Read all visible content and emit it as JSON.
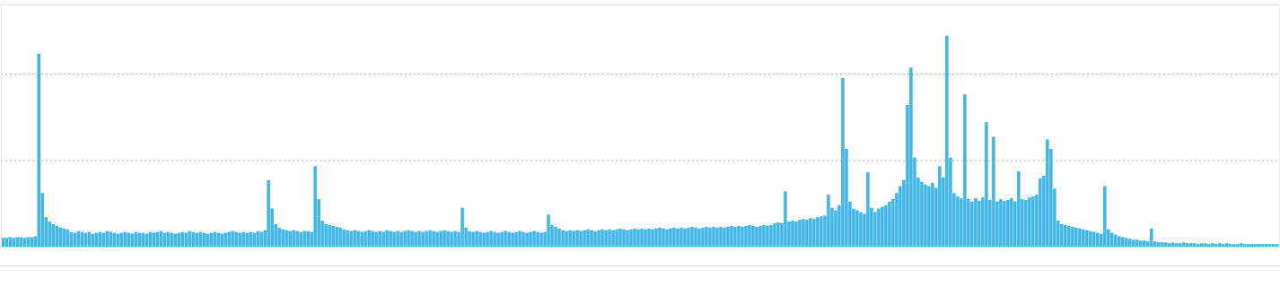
{
  "chart_data": {
    "type": "bar",
    "categories": [
      null,
      null,
      null,
      null,
      null,
      null,
      null,
      null,
      null,
      null,
      null,
      null,
      null,
      null,
      null,
      null,
      null,
      null,
      null,
      null,
      null,
      null,
      null,
      null,
      null,
      null,
      null,
      null,
      null,
      null,
      null,
      null,
      null,
      null,
      null,
      null,
      null,
      null,
      null,
      null,
      null,
      null,
      null,
      null,
      null,
      null,
      null,
      null,
      null,
      null,
      null,
      null,
      null,
      null,
      null,
      null,
      null,
      null,
      null,
      null,
      null,
      null,
      null,
      null,
      null,
      null,
      null,
      null,
      null,
      null,
      null,
      null,
      null,
      null,
      null,
      null,
      null,
      null,
      null,
      null,
      null,
      null,
      null,
      null,
      null,
      null,
      null,
      null,
      null,
      null,
      null,
      null,
      null,
      null,
      null,
      null,
      null,
      null,
      null,
      null,
      null,
      null,
      null,
      null,
      null,
      null,
      null,
      null,
      null,
      null,
      null,
      null,
      null,
      null,
      null,
      null,
      null,
      null,
      null,
      null,
      null,
      null,
      null,
      null,
      null,
      null,
      null,
      null,
      null,
      null,
      null,
      null,
      null,
      null,
      null,
      null,
      null,
      null,
      null,
      null,
      null,
      null,
      null,
      null,
      null,
      null,
      null,
      null,
      null,
      null,
      null,
      null,
      null,
      null,
      null,
      null,
      null,
      null,
      null,
      null,
      null,
      null,
      null,
      null,
      null,
      null,
      null,
      null,
      null,
      null,
      null,
      null,
      null,
      null,
      null,
      null,
      null,
      null,
      null,
      null,
      null,
      null,
      null,
      null,
      null,
      null,
      null,
      null,
      null,
      null,
      null,
      null,
      null,
      null,
      null,
      null,
      null,
      null,
      null,
      null,
      null,
      null,
      null,
      null,
      null,
      null,
      null,
      null,
      null,
      null,
      null,
      null,
      null,
      null,
      null,
      null,
      null,
      null,
      null,
      null,
      null,
      null,
      null,
      null,
      null,
      null,
      null,
      null,
      null,
      null,
      null,
      null,
      null,
      null,
      null,
      null,
      null,
      null,
      null,
      null,
      null,
      null,
      null,
      null,
      null,
      null,
      null,
      null,
      null,
      null,
      null,
      null,
      null,
      null,
      null,
      null,
      null,
      null,
      null,
      null,
      null,
      null,
      null,
      null,
      null,
      null,
      null,
      null,
      null,
      null,
      null,
      null,
      null,
      null,
      null,
      null,
      null,
      null,
      null,
      null,
      null,
      null,
      null,
      null,
      null,
      null,
      null,
      null,
      null,
      null,
      null,
      null,
      null,
      null,
      null,
      null,
      null,
      null,
      null,
      null,
      null,
      null,
      null,
      null,
      null,
      null,
      null,
      null,
      null,
      null,
      null,
      null,
      null,
      null,
      null,
      null,
      null,
      null,
      null,
      null,
      null,
      null,
      null,
      null,
      null,
      null,
      null,
      null,
      null,
      null,
      null,
      null,
      null,
      null,
      null,
      null,
      null,
      null,
      null,
      null,
      null,
      null,
      null,
      null,
      null,
      null,
      null,
      null,
      null,
      null,
      null,
      null,
      null,
      null,
      null,
      null
    ],
    "values": [
      10,
      10,
      11,
      10,
      11,
      11,
      10,
      11,
      11,
      12,
      223,
      62,
      34,
      29,
      26,
      24,
      22,
      21,
      20,
      17,
      16,
      18,
      17,
      16,
      17,
      15,
      16,
      17,
      16,
      18,
      17,
      16,
      15,
      16,
      17,
      16,
      15,
      17,
      16,
      16,
      15,
      17,
      16,
      17,
      18,
      16,
      17,
      16,
      15,
      16,
      17,
      16,
      18,
      17,
      16,
      17,
      16,
      15,
      16,
      17,
      16,
      15,
      16,
      17,
      18,
      17,
      16,
      17,
      16,
      17,
      16,
      18,
      17,
      19,
      77,
      44,
      26,
      22,
      20,
      19,
      18,
      19,
      18,
      17,
      18,
      18,
      17,
      93,
      55,
      30,
      26,
      25,
      24,
      23,
      22,
      20,
      19,
      18,
      19,
      18,
      17,
      18,
      19,
      18,
      17,
      18,
      17,
      19,
      18,
      17,
      18,
      17,
      18,
      19,
      18,
      17,
      18,
      17,
      18,
      19,
      18,
      17,
      18,
      19,
      18,
      17,
      18,
      17,
      45,
      22,
      18,
      17,
      18,
      17,
      16,
      17,
      18,
      17,
      16,
      17,
      18,
      17,
      16,
      17,
      18,
      17,
      16,
      17,
      18,
      17,
      16,
      17,
      37,
      25,
      23,
      21,
      19,
      18,
      19,
      18,
      19,
      18,
      19,
      20,
      19,
      18,
      19,
      20,
      19,
      20,
      19,
      20,
      21,
      20,
      19,
      20,
      21,
      20,
      21,
      20,
      21,
      20,
      21,
      22,
      21,
      20,
      21,
      22,
      21,
      22,
      21,
      22,
      23,
      22,
      21,
      22,
      23,
      22,
      23,
      22,
      23,
      22,
      23,
      24,
      23,
      24,
      23,
      24,
      25,
      24,
      23,
      24,
      25,
      24,
      25,
      27,
      28,
      27,
      64,
      29,
      30,
      29,
      31,
      32,
      31,
      33,
      32,
      34,
      35,
      36,
      60,
      45,
      42,
      48,
      195,
      113,
      52,
      44,
      42,
      40,
      38,
      86,
      45,
      40,
      44,
      46,
      48,
      52,
      55,
      62,
      70,
      77,
      164,
      207,
      103,
      80,
      75,
      72,
      70,
      74,
      68,
      93,
      80,
      244,
      103,
      62,
      58,
      56,
      176,
      55,
      52,
      56,
      53,
      57,
      144,
      54,
      127,
      52,
      55,
      53,
      54,
      56,
      52,
      87,
      55,
      54,
      57,
      58,
      60,
      79,
      82,
      124,
      113,
      67,
      30,
      26,
      25,
      24,
      23,
      22,
      21,
      20,
      19,
      18,
      17,
      16,
      15,
      70,
      20,
      16,
      14,
      12,
      11,
      10,
      9,
      8,
      8,
      7,
      7,
      6,
      21,
      6,
      5,
      5,
      5,
      4,
      5,
      4,
      4,
      5,
      4,
      4,
      4,
      3,
      4,
      4,
      3,
      4,
      3,
      4,
      3,
      4,
      3,
      3,
      3,
      4,
      3,
      3,
      3,
      3,
      3,
      3,
      3,
      3,
      3,
      3
    ],
    "color": "#41b6e6",
    "ylim": [
      0,
      280
    ],
    "yticks": [
      0,
      100,
      200
    ],
    "grid": true,
    "tick_labels": false
  }
}
